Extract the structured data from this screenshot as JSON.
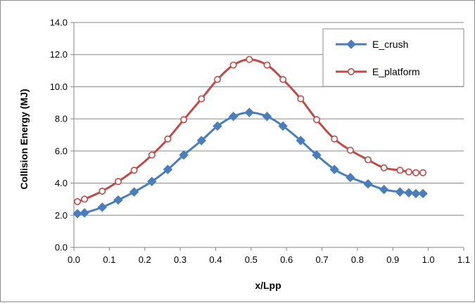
{
  "chart_data": {
    "type": "line",
    "title": "",
    "xlabel": "x/Lpp",
    "ylabel": "Collision Energy (MJ)",
    "xlim": [
      0.0,
      1.1
    ],
    "ylim": [
      0.0,
      14.0
    ],
    "xticks": [
      "0.0",
      "0.1",
      "0.2",
      "0.3",
      "0.4",
      "0.5",
      "0.6",
      "0.7",
      "0.8",
      "0.9",
      "1.0",
      "1.1"
    ],
    "yticks": [
      "0.0",
      "2.0",
      "4.0",
      "6.0",
      "8.0",
      "10.0",
      "12.0",
      "14.0"
    ],
    "grid": "horizontal",
    "legend_position": "top-right",
    "series": [
      {
        "name": "E_crush",
        "color": "#4a7ebb",
        "marker": "diamond-filled",
        "x": [
          0.01,
          0.03,
          0.08,
          0.125,
          0.17,
          0.22,
          0.265,
          0.31,
          0.36,
          0.405,
          0.45,
          0.495,
          0.545,
          0.59,
          0.64,
          0.685,
          0.735,
          0.78,
          0.83,
          0.875,
          0.92,
          0.945,
          0.965,
          0.985
        ],
        "y": [
          2.1,
          2.15,
          2.5,
          2.95,
          3.45,
          4.1,
          4.85,
          5.75,
          6.65,
          7.55,
          8.15,
          8.4,
          8.15,
          7.55,
          6.65,
          5.75,
          4.85,
          4.35,
          3.95,
          3.6,
          3.45,
          3.4,
          3.35,
          3.35
        ]
      },
      {
        "name": "E_platform",
        "color": "#be4b48",
        "marker": "circle-open",
        "x": [
          0.01,
          0.03,
          0.08,
          0.125,
          0.17,
          0.22,
          0.265,
          0.31,
          0.36,
          0.405,
          0.45,
          0.495,
          0.545,
          0.59,
          0.64,
          0.685,
          0.735,
          0.78,
          0.83,
          0.875,
          0.92,
          0.945,
          0.965,
          0.985
        ],
        "y": [
          2.85,
          3.0,
          3.5,
          4.1,
          4.8,
          5.75,
          6.75,
          7.95,
          9.25,
          10.45,
          11.35,
          11.7,
          11.35,
          10.45,
          9.25,
          7.95,
          6.75,
          6.05,
          5.45,
          4.95,
          4.8,
          4.7,
          4.65,
          4.65
        ]
      }
    ]
  }
}
